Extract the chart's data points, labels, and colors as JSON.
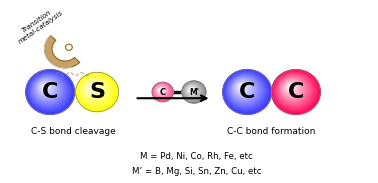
{
  "bg_color": "#ffffff",
  "blue_color": "#3333ff",
  "yellow_color": "#ffff00",
  "red_color": "#ff0055",
  "gray_color": "#aaaaaa",
  "pink_color": "#ff4488",
  "bond_color": "#111111",
  "text_color": "#000000",
  "label_cs": "C-S bond cleavage",
  "label_cc": "C-C bond formation",
  "m_line": "M = Pd, Ni, Co, Rh, Fe, etc",
  "mprime_line": "M’ = B, Mg, Si, Sn, Zn, Cu, etc",
  "catalyst_label": "Transition\nmetal-catalysis",
  "c_label": "C",
  "s_label": "S"
}
